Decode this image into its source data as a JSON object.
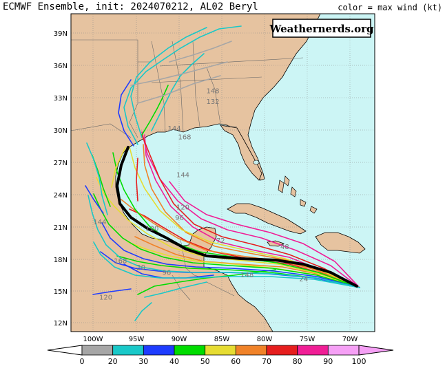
{
  "title": "ECMWF Ensemble, init: 2024070212, AL02 Beryl",
  "legend_title": "color = max wind (kt)",
  "watermark": "Weathernerds.org",
  "lat_labels": [
    "39N",
    "36N",
    "33N",
    "30N",
    "27N",
    "24N",
    "21N",
    "18N",
    "15N",
    "12N"
  ],
  "lon_labels": [
    "100W",
    "95W",
    "90W",
    "85W",
    "80W",
    "75W",
    "70W"
  ],
  "colorbar": {
    "ticks": [
      "0",
      "20",
      "30",
      "40",
      "50",
      "60",
      "70",
      "80",
      "90",
      "100"
    ],
    "colors": [
      "#a6a6a6",
      "#19c8c8",
      "#1e3cff",
      "#00dc00",
      "#e6dc32",
      "#f08228",
      "#e61e1e",
      "#f01e96",
      "#f5a0f5"
    ]
  },
  "track_labels": [
    {
      "text": "148",
      "lon": -86.0,
      "lat": 33.4
    },
    {
      "text": "132",
      "lon": -86.0,
      "lat": 32.4
    },
    {
      "text": "144",
      "lon": -90.5,
      "lat": 29.9
    },
    {
      "text": "168",
      "lon": -89.3,
      "lat": 29.1
    },
    {
      "text": "144",
      "lon": -89.5,
      "lat": 25.6
    },
    {
      "text": "120",
      "lon": -89.5,
      "lat": 22.6
    },
    {
      "text": "96",
      "lon": -89.9,
      "lat": 21.6
    },
    {
      "text": "144",
      "lon": -99.2,
      "lat": 21.2
    },
    {
      "text": "120",
      "lon": -93.1,
      "lat": 20.6
    },
    {
      "text": "72",
      "lon": -85.1,
      "lat": 19.5
    },
    {
      "text": "48",
      "lon": -77.6,
      "lat": 18.9
    },
    {
      "text": "168",
      "lon": -96.8,
      "lat": 17.6
    },
    {
      "text": "20",
      "lon": -94.4,
      "lat": 17.0
    },
    {
      "text": "96",
      "lon": -91.4,
      "lat": 16.5
    },
    {
      "text": "148",
      "lon": -82.0,
      "lat": 16.3
    },
    {
      "text": "24",
      "lon": -75.4,
      "lat": 15.9
    },
    {
      "text": "120",
      "lon": -98.5,
      "lat": 14.2
    }
  ]
}
